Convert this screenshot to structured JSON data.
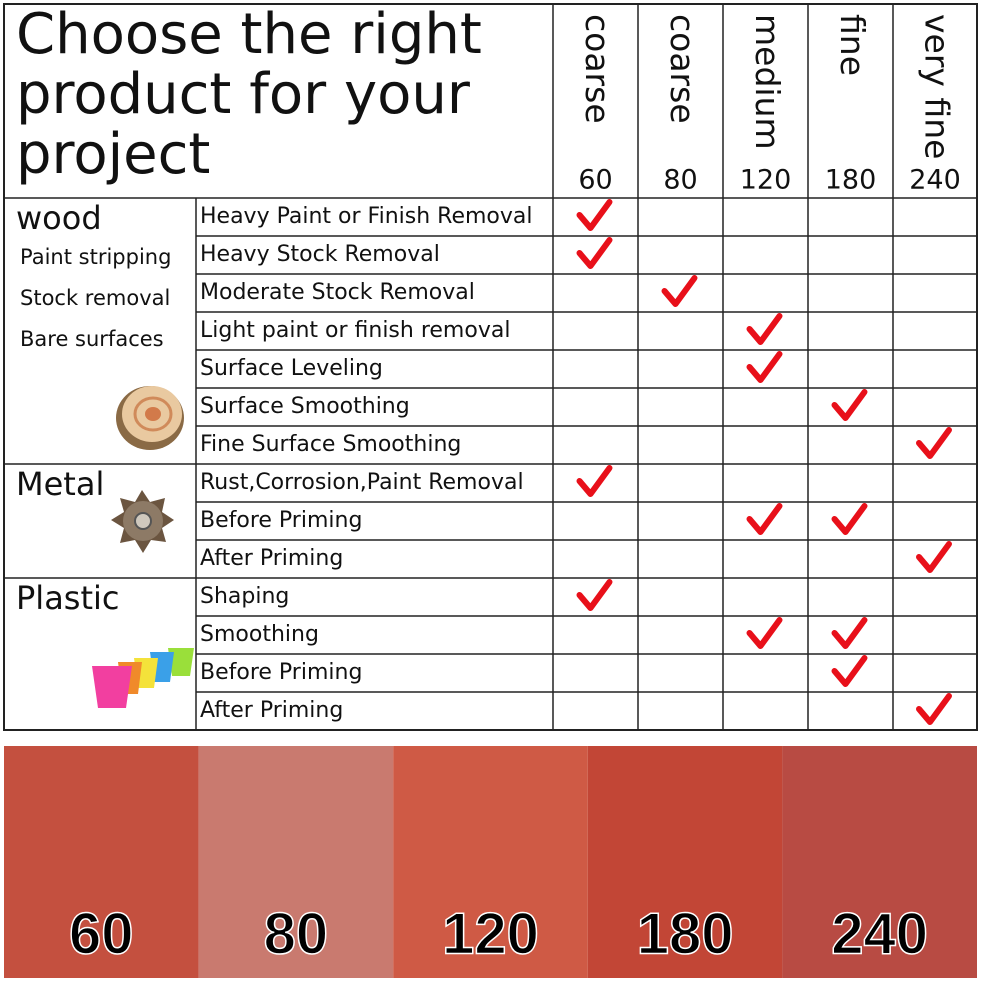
{
  "title": [
    "Choose the right",
    "product for your",
    "project"
  ],
  "grades": [
    {
      "name": "coarse",
      "number": "60"
    },
    {
      "name": "coarse",
      "number": "80"
    },
    {
      "name": "medium",
      "number": "120"
    },
    {
      "name": "fine",
      "number": "180"
    },
    {
      "name": "very fine",
      "number": "240"
    }
  ],
  "groups": [
    {
      "name": "wood",
      "notes": [
        "Paint stripping",
        "Stock removal",
        "Bare surfaces"
      ],
      "icon": "wood",
      "rows": [
        {
          "task": "Heavy Paint or Finish Removal",
          "checked": [
            true,
            false,
            false,
            false,
            false
          ]
        },
        {
          "task": "Heavy Stock Removal",
          "checked": [
            true,
            false,
            false,
            false,
            false
          ]
        },
        {
          "task": "Moderate Stock Removal",
          "checked": [
            false,
            true,
            false,
            false,
            false
          ]
        },
        {
          "task": "Light paint or finish removal",
          "checked": [
            false,
            false,
            true,
            false,
            false
          ]
        },
        {
          "task": "Surface Leveling",
          "checked": [
            false,
            false,
            true,
            false,
            false
          ]
        },
        {
          "task": "Surface Smoothing",
          "checked": [
            false,
            false,
            false,
            true,
            false
          ]
        },
        {
          "task": "Fine Surface Smoothing",
          "checked": [
            false,
            false,
            false,
            false,
            true
          ]
        }
      ]
    },
    {
      "name": "Metal",
      "notes": [],
      "icon": "metal",
      "rows": [
        {
          "task": "Rust,Corrosion,Paint Removal",
          "checked": [
            true,
            false,
            false,
            false,
            false
          ]
        },
        {
          "task": "Before Priming",
          "checked": [
            false,
            false,
            true,
            true,
            false
          ]
        },
        {
          "task": "After Priming",
          "checked": [
            false,
            false,
            false,
            false,
            true
          ]
        }
      ]
    },
    {
      "name": "Plastic",
      "notes": [],
      "icon": "plastic",
      "rows": [
        {
          "task": "Shaping",
          "checked": [
            true,
            false,
            false,
            false,
            false
          ]
        },
        {
          "task": "Smoothing",
          "checked": [
            false,
            false,
            true,
            true,
            false
          ]
        },
        {
          "task": "Before Priming",
          "checked": [
            false,
            false,
            false,
            true,
            false
          ]
        },
        {
          "task": "After Priming",
          "checked": [
            false,
            false,
            false,
            false,
            true
          ]
        }
      ]
    }
  ],
  "swatches": [
    {
      "label": "60",
      "color": "#c4503f"
    },
    {
      "label": "80",
      "color": "#c97a6f"
    },
    {
      "label": "120",
      "color": "#cf5a45"
    },
    {
      "label": "180",
      "color": "#c24636"
    },
    {
      "label": "240",
      "color": "#b84b43"
    }
  ]
}
